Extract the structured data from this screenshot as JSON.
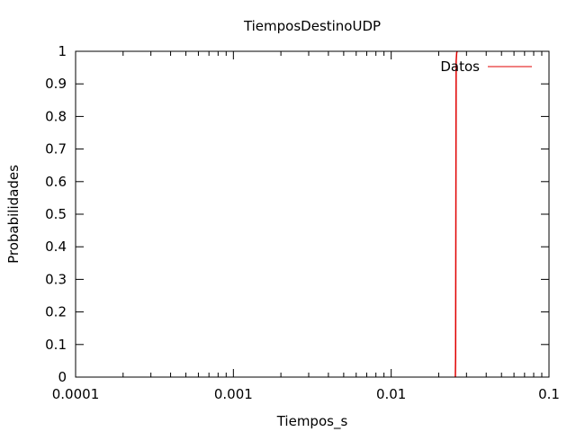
{
  "chart_data": {
    "type": "line",
    "title": "TiemposDestinoUDP",
    "xlabel": "Tiempos_s",
    "ylabel": "Probabilidades",
    "x_scale": "log",
    "xlim": [
      0.0001,
      0.1
    ],
    "ylim": [
      0,
      1
    ],
    "x_ticks": [
      "0.0001",
      "0.001",
      "0.01",
      "0.1"
    ],
    "y_ticks": [
      "0",
      "0.1",
      "0.2",
      "0.3",
      "0.4",
      "0.5",
      "0.6",
      "0.7",
      "0.8",
      "0.9",
      "1"
    ],
    "grid": false,
    "legend_position": "top-right",
    "series": [
      {
        "name": "Datos",
        "color": "#e00000",
        "x": [
          0.0255,
          0.0256,
          0.0257,
          0.0258,
          0.026,
          0.0262
        ],
        "y": [
          0,
          0.06,
          0.5,
          0.97,
          0.995,
          1
        ]
      }
    ]
  }
}
